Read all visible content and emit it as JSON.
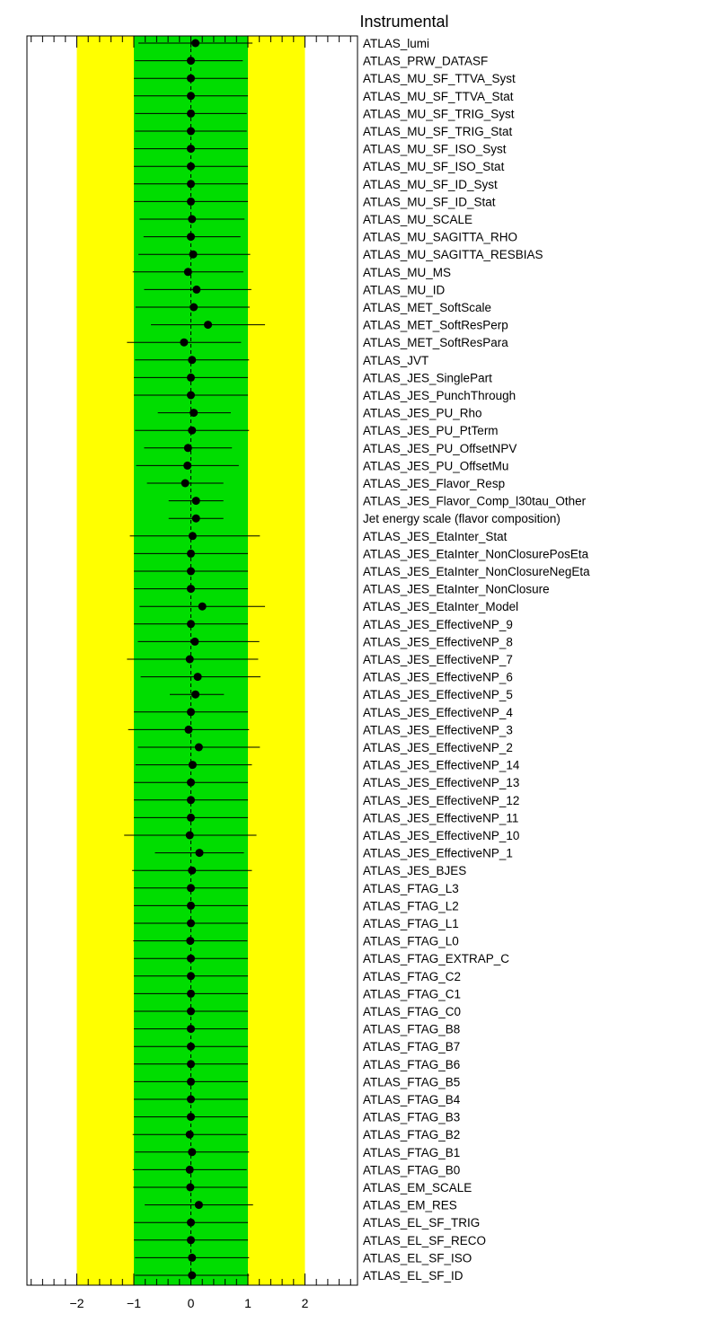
{
  "chart_data": {
    "type": "scatter",
    "title": "Instrumental",
    "xlim": [
      -2.9,
      2.9
    ],
    "x_ticks": [
      -2,
      -1,
      0,
      1,
      2
    ],
    "x_tick_labels": [
      "−2",
      "−1",
      "0",
      "1",
      "2"
    ],
    "bands": [
      {
        "name": "2 sigma",
        "from": -2,
        "to": 2,
        "color": "#ffff00"
      },
      {
        "name": "1 sigma",
        "from": -1,
        "to": 1,
        "color": "#00dd00"
      }
    ],
    "reference_line": 0,
    "marker_color": "#000000",
    "parameters": [
      {
        "name": "ATLAS_lumi",
        "value": 0.08,
        "err_lo": 1.0,
        "err_hi": 1.0
      },
      {
        "name": "ATLAS_PRW_DATASF",
        "value": 0.0,
        "err_lo": 0.98,
        "err_hi": 0.91
      },
      {
        "name": "ATLAS_MU_SF_TTVA_Syst",
        "value": 0.0,
        "err_lo": 1.0,
        "err_hi": 1.0
      },
      {
        "name": "ATLAS_MU_SF_TTVA_Stat",
        "value": 0.0,
        "err_lo": 1.0,
        "err_hi": 1.0
      },
      {
        "name": "ATLAS_MU_SF_TRIG_Syst",
        "value": 0.0,
        "err_lo": 0.98,
        "err_hi": 0.98
      },
      {
        "name": "ATLAS_MU_SF_TRIG_Stat",
        "value": 0.0,
        "err_lo": 0.98,
        "err_hi": 0.98
      },
      {
        "name": "ATLAS_MU_SF_ISO_Syst",
        "value": 0.0,
        "err_lo": 1.0,
        "err_hi": 1.0
      },
      {
        "name": "ATLAS_MU_SF_ISO_Stat",
        "value": 0.0,
        "err_lo": 1.0,
        "err_hi": 1.0
      },
      {
        "name": "ATLAS_MU_SF_ID_Syst",
        "value": 0.0,
        "err_lo": 1.0,
        "err_hi": 1.0
      },
      {
        "name": "ATLAS_MU_SF_ID_Stat",
        "value": 0.0,
        "err_lo": 1.0,
        "err_hi": 1.0
      },
      {
        "name": "ATLAS_MU_SCALE",
        "value": 0.02,
        "err_lo": 0.92,
        "err_hi": 0.92
      },
      {
        "name": "ATLAS_MU_SAGITTA_RHO",
        "value": 0.0,
        "err_lo": 0.83,
        "err_hi": 0.87
      },
      {
        "name": "ATLAS_MU_SAGITTA_RESBIAS",
        "value": 0.04,
        "err_lo": 0.96,
        "err_hi": 1.0
      },
      {
        "name": "ATLAS_MU_MS",
        "value": -0.05,
        "err_lo": 0.97,
        "err_hi": 0.97
      },
      {
        "name": "ATLAS_MU_ID",
        "value": 0.1,
        "err_lo": 0.92,
        "err_hi": 0.96
      },
      {
        "name": "ATLAS_MET_SoftScale",
        "value": 0.05,
        "err_lo": 1.02,
        "err_hi": 0.98
      },
      {
        "name": "ATLAS_MET_SoftResPerp",
        "value": 0.3,
        "err_lo": 1.0,
        "err_hi": 1.0
      },
      {
        "name": "ATLAS_MET_SoftResPara",
        "value": -0.12,
        "err_lo": 1.0,
        "err_hi": 1.0
      },
      {
        "name": "ATLAS_JVT",
        "value": 0.02,
        "err_lo": 1.0,
        "err_hi": 1.0
      },
      {
        "name": "ATLAS_JES_SinglePart",
        "value": 0.0,
        "err_lo": 1.0,
        "err_hi": 1.0
      },
      {
        "name": "ATLAS_JES_PunchThrough",
        "value": 0.0,
        "err_lo": 1.0,
        "err_hi": 1.0
      },
      {
        "name": "ATLAS_JES_PU_Rho",
        "value": 0.05,
        "err_lo": 0.63,
        "err_hi": 0.65
      },
      {
        "name": "ATLAS_JES_PU_PtTerm",
        "value": 0.02,
        "err_lo": 1.0,
        "err_hi": 1.0
      },
      {
        "name": "ATLAS_JES_PU_OffsetNPV",
        "value": -0.05,
        "err_lo": 0.77,
        "err_hi": 0.77
      },
      {
        "name": "ATLAS_JES_PU_OffsetMu",
        "value": -0.06,
        "err_lo": 0.9,
        "err_hi": 0.9
      },
      {
        "name": "ATLAS_JES_Flavor_Resp",
        "value": -0.1,
        "err_lo": 0.67,
        "err_hi": 0.67
      },
      {
        "name": "ATLAS_JES_Flavor_Comp_l30tau_Other",
        "value": 0.09,
        "err_lo": 0.48,
        "err_hi": 0.48
      },
      {
        "name": "Jet energy scale (flavor composition)",
        "value": 0.09,
        "err_lo": 0.48,
        "err_hi": 0.48
      },
      {
        "name": "ATLAS_JES_EtaInter_Stat",
        "value": 0.03,
        "err_lo": 1.1,
        "err_hi": 1.18
      },
      {
        "name": "ATLAS_JES_EtaInter_NonClosurePosEta",
        "value": 0.0,
        "err_lo": 1.0,
        "err_hi": 1.0
      },
      {
        "name": "ATLAS_JES_EtaInter_NonClosureNegEta",
        "value": 0.0,
        "err_lo": 1.0,
        "err_hi": 1.0
      },
      {
        "name": "ATLAS_JES_EtaInter_NonClosure",
        "value": 0.0,
        "err_lo": 1.0,
        "err_hi": 1.0
      },
      {
        "name": "ATLAS_JES_EtaInter_Model",
        "value": 0.2,
        "err_lo": 1.1,
        "err_hi": 1.1
      },
      {
        "name": "ATLAS_JES_EffectiveNP_9",
        "value": 0.0,
        "err_lo": 1.0,
        "err_hi": 1.0
      },
      {
        "name": "ATLAS_JES_EffectiveNP_8",
        "value": 0.07,
        "err_lo": 1.0,
        "err_hi": 1.13
      },
      {
        "name": "ATLAS_JES_EffectiveNP_7",
        "value": -0.02,
        "err_lo": 1.1,
        "err_hi": 1.2
      },
      {
        "name": "ATLAS_JES_EffectiveNP_6",
        "value": 0.12,
        "err_lo": 1.0,
        "err_hi": 1.1
      },
      {
        "name": "ATLAS_JES_EffectiveNP_5",
        "value": 0.08,
        "err_lo": 0.45,
        "err_hi": 0.5
      },
      {
        "name": "ATLAS_JES_EffectiveNP_4",
        "value": 0.0,
        "err_lo": 1.0,
        "err_hi": 1.0
      },
      {
        "name": "ATLAS_JES_EffectiveNP_3",
        "value": -0.04,
        "err_lo": 1.06,
        "err_hi": 1.06
      },
      {
        "name": "ATLAS_JES_EffectiveNP_2",
        "value": 0.14,
        "err_lo": 1.07,
        "err_hi": 1.07
      },
      {
        "name": "ATLAS_JES_EffectiveNP_14",
        "value": 0.03,
        "err_lo": 1.0,
        "err_hi": 1.04
      },
      {
        "name": "ATLAS_JES_EffectiveNP_13",
        "value": 0.0,
        "err_lo": 1.0,
        "err_hi": 1.0
      },
      {
        "name": "ATLAS_JES_EffectiveNP_12",
        "value": 0.0,
        "err_lo": 1.0,
        "err_hi": 1.0
      },
      {
        "name": "ATLAS_JES_EffectiveNP_11",
        "value": 0.0,
        "err_lo": 1.0,
        "err_hi": 1.0
      },
      {
        "name": "ATLAS_JES_EffectiveNP_10",
        "value": -0.02,
        "err_lo": 1.15,
        "err_hi": 1.17
      },
      {
        "name": "ATLAS_JES_EffectiveNP_1",
        "value": 0.15,
        "err_lo": 0.78,
        "err_hi": 0.78
      },
      {
        "name": "ATLAS_JES_BJES",
        "value": 0.02,
        "err_lo": 1.05,
        "err_hi": 1.05
      },
      {
        "name": "ATLAS_FTAG_L3",
        "value": 0.0,
        "err_lo": 1.0,
        "err_hi": 1.0
      },
      {
        "name": "ATLAS_FTAG_L2",
        "value": 0.0,
        "err_lo": 1.0,
        "err_hi": 1.0
      },
      {
        "name": "ATLAS_FTAG_L1",
        "value": 0.0,
        "err_lo": 1.0,
        "err_hi": 1.0
      },
      {
        "name": "ATLAS_FTAG_L0",
        "value": -0.01,
        "err_lo": 1.0,
        "err_hi": 1.0
      },
      {
        "name": "ATLAS_FTAG_EXTRAP_C",
        "value": 0.0,
        "err_lo": 1.0,
        "err_hi": 1.0
      },
      {
        "name": "ATLAS_FTAG_C2",
        "value": 0.0,
        "err_lo": 1.0,
        "err_hi": 1.0
      },
      {
        "name": "ATLAS_FTAG_C1",
        "value": 0.0,
        "err_lo": 1.0,
        "err_hi": 1.0
      },
      {
        "name": "ATLAS_FTAG_C0",
        "value": 0.0,
        "err_lo": 1.0,
        "err_hi": 1.0
      },
      {
        "name": "ATLAS_FTAG_B8",
        "value": 0.0,
        "err_lo": 1.0,
        "err_hi": 1.0
      },
      {
        "name": "ATLAS_FTAG_B7",
        "value": 0.0,
        "err_lo": 1.0,
        "err_hi": 1.0
      },
      {
        "name": "ATLAS_FTAG_B6",
        "value": 0.0,
        "err_lo": 1.0,
        "err_hi": 1.0
      },
      {
        "name": "ATLAS_FTAG_B5",
        "value": 0.0,
        "err_lo": 1.0,
        "err_hi": 1.0
      },
      {
        "name": "ATLAS_FTAG_B4",
        "value": 0.0,
        "err_lo": 1.0,
        "err_hi": 1.0
      },
      {
        "name": "ATLAS_FTAG_B3",
        "value": 0.0,
        "err_lo": 1.0,
        "err_hi": 1.0
      },
      {
        "name": "ATLAS_FTAG_B2",
        "value": -0.02,
        "err_lo": 1.0,
        "err_hi": 1.0
      },
      {
        "name": "ATLAS_FTAG_B1",
        "value": 0.02,
        "err_lo": 1.0,
        "err_hi": 1.0
      },
      {
        "name": "ATLAS_FTAG_B0",
        "value": -0.02,
        "err_lo": 1.0,
        "err_hi": 1.0
      },
      {
        "name": "ATLAS_EM_SCALE",
        "value": -0.01,
        "err_lo": 1.0,
        "err_hi": 1.0
      },
      {
        "name": "ATLAS_EM_RES",
        "value": 0.14,
        "err_lo": 0.95,
        "err_hi": 0.95
      },
      {
        "name": "ATLAS_EL_SF_TRIG",
        "value": 0.0,
        "err_lo": 1.0,
        "err_hi": 1.0
      },
      {
        "name": "ATLAS_EL_SF_RECO",
        "value": 0.0,
        "err_lo": 1.0,
        "err_hi": 1.0
      },
      {
        "name": "ATLAS_EL_SF_ISO",
        "value": 0.02,
        "err_lo": 1.0,
        "err_hi": 1.0
      },
      {
        "name": "ATLAS_EL_SF_ID",
        "value": 0.02,
        "err_lo": 1.0,
        "err_hi": 1.0
      }
    ]
  }
}
